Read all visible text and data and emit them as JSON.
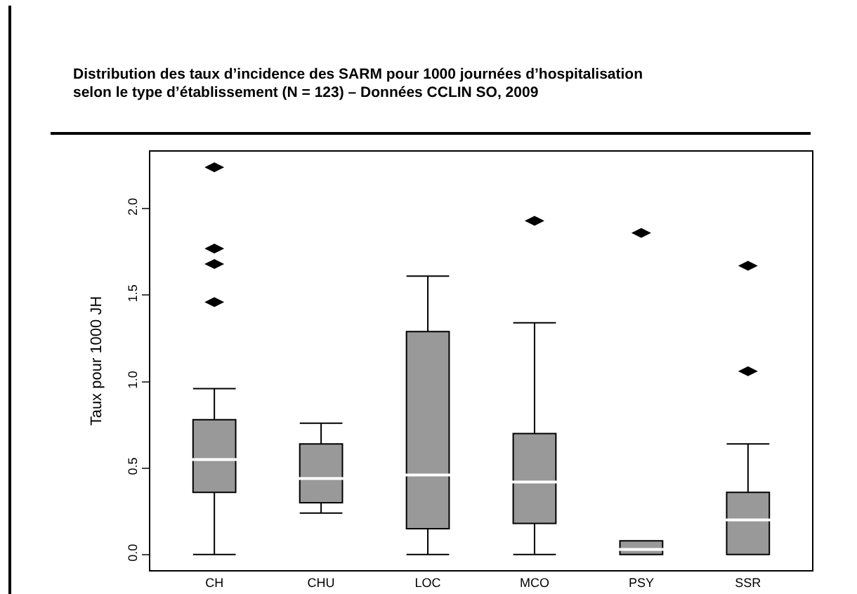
{
  "chart_data": {
    "type": "box",
    "title": "Distribution des taux d’incidence des SARM pour 1000 journées d’hospitalisation\nselon le type d’établissement (N = 123) – Données CCLIN SO, 2009",
    "ylabel": "Taux pour 1000 JH",
    "categories": [
      "CH",
      "CHU",
      "LOC",
      "MCO",
      "PSY",
      "SSR"
    ],
    "color": "#999999",
    "boxes": [
      {
        "low": 0,
        "q1": 0.36,
        "median": 0.55,
        "q3": 0.78,
        "high": 0.96,
        "outliers": [
          1.46,
          1.68,
          1.77,
          2.24
        ]
      },
      {
        "low": 0.24,
        "q1": 0.3,
        "median": 0.44,
        "q3": 0.64,
        "high": 0.76
      },
      {
        "low": 0,
        "q1": 0.15,
        "median": 0.46,
        "q3": 1.29,
        "high": 1.61
      },
      {
        "low": 0,
        "q1": 0.18,
        "median": 0.42,
        "q3": 0.7,
        "high": 1.34,
        "outliers": [
          1.93
        ]
      },
      {
        "low": 0,
        "q1": 0,
        "median": 0.03,
        "q3": 0.08,
        "high": 0.08,
        "outliers": [
          1.86
        ]
      },
      {
        "low": 0,
        "q1": 0,
        "median": 0.2,
        "q3": 0.36,
        "high": 0.64,
        "outliers": [
          1.06,
          1.67
        ]
      }
    ],
    "ylim": [
      -0.09,
      2.33
    ],
    "yticks": [
      {
        "value": 0,
        "label": "0.0"
      },
      {
        "value": 0.5,
        "label": "0.5"
      },
      {
        "value": 1,
        "label": "1.0"
      },
      {
        "value": 1.5,
        "label": "1.5"
      },
      {
        "value": 2,
        "label": "2.0"
      }
    ]
  }
}
